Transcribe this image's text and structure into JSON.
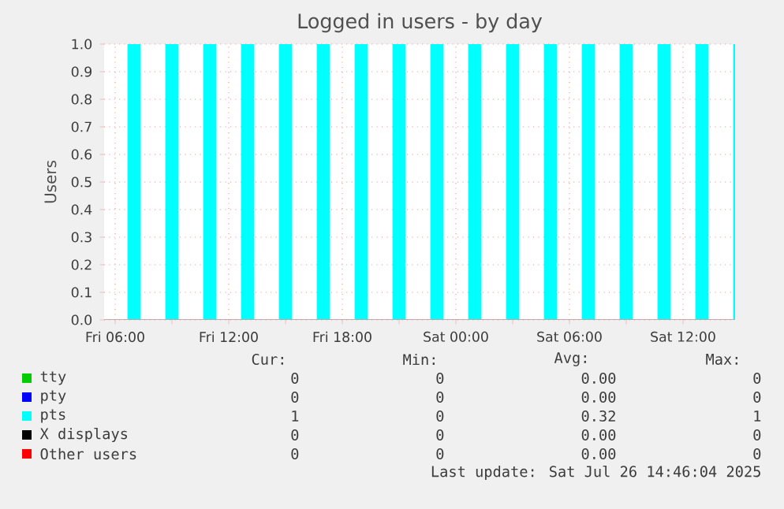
{
  "chart_data": {
    "type": "area",
    "title": "Logged in users - by day",
    "ylabel": "Users",
    "xlim": [
      "2025-07-25T05:25",
      "2025-07-26T14:45"
    ],
    "xticks": [
      {
        "value": "2025-07-25T06:00",
        "label": "Fri 06:00"
      },
      {
        "value": "2025-07-25T09:00",
        "label": null
      },
      {
        "value": "2025-07-25T12:00",
        "label": "Fri 12:00"
      },
      {
        "value": "2025-07-25T15:00",
        "label": null
      },
      {
        "value": "2025-07-25T18:00",
        "label": "Fri 18:00"
      },
      {
        "value": "2025-07-25T21:00",
        "label": null
      },
      {
        "value": "2025-07-26T00:00",
        "label": "Sat 00:00"
      },
      {
        "value": "2025-07-26T03:00",
        "label": null
      },
      {
        "value": "2025-07-26T06:00",
        "label": "Sat 06:00"
      },
      {
        "value": "2025-07-26T09:00",
        "label": null
      },
      {
        "value": "2025-07-26T12:00",
        "label": "Sat 12:00"
      }
    ],
    "ylim": [
      0,
      1
    ],
    "yticks": [
      {
        "value": 0,
        "label": "0.0"
      },
      0.1,
      0.2,
      0.3,
      0.4,
      0.5,
      0.6,
      0.7,
      0.8,
      0.9,
      {
        "value": 1,
        "label": "1.0"
      }
    ],
    "grid": true,
    "legend": "bottom",
    "series": [
      {
        "name": "tty",
        "color": "#00cc00"
      },
      {
        "name": "pty",
        "color": "#0000ff"
      },
      {
        "name": "pts",
        "color": "#00ffff",
        "x": [
          "2025-07-25T05:25",
          "2025-07-25T06:40",
          "2025-07-25T06:40",
          "2025-07-25T07:20",
          "2025-07-25T07:20",
          "2025-07-25T08:40",
          "2025-07-25T08:40",
          "2025-07-25T09:20",
          "2025-07-25T09:20",
          "2025-07-25T10:40",
          "2025-07-25T10:40",
          "2025-07-25T11:20",
          "2025-07-25T11:20",
          "2025-07-25T12:40",
          "2025-07-25T12:40",
          "2025-07-25T13:20",
          "2025-07-25T13:20",
          "2025-07-25T14:40",
          "2025-07-25T14:40",
          "2025-07-25T15:20",
          "2025-07-25T15:20",
          "2025-07-25T16:40",
          "2025-07-25T16:40",
          "2025-07-25T17:20",
          "2025-07-25T17:20",
          "2025-07-25T18:40",
          "2025-07-25T18:40",
          "2025-07-25T19:20",
          "2025-07-25T19:20",
          "2025-07-25T20:40",
          "2025-07-25T20:40",
          "2025-07-25T21:20",
          "2025-07-25T21:20",
          "2025-07-25T22:40",
          "2025-07-25T22:40",
          "2025-07-25T23:20",
          "2025-07-25T23:20",
          "2025-07-26T00:40",
          "2025-07-26T00:40",
          "2025-07-26T01:20",
          "2025-07-26T01:20",
          "2025-07-26T02:40",
          "2025-07-26T02:40",
          "2025-07-26T03:20",
          "2025-07-26T03:20",
          "2025-07-26T04:40",
          "2025-07-26T04:40",
          "2025-07-26T05:20",
          "2025-07-26T05:20",
          "2025-07-26T06:40",
          "2025-07-26T06:40",
          "2025-07-26T07:20",
          "2025-07-26T07:20",
          "2025-07-26T08:40",
          "2025-07-26T08:40",
          "2025-07-26T09:20",
          "2025-07-26T09:20",
          "2025-07-26T10:40",
          "2025-07-26T10:40",
          "2025-07-26T11:20",
          "2025-07-26T11:20",
          "2025-07-26T12:40",
          "2025-07-26T12:40",
          "2025-07-26T13:20",
          "2025-07-26T13:20",
          "2025-07-26T14:40",
          "2025-07-26T14:40",
          "2025-07-26T14:45"
        ],
        "values": [
          0,
          0,
          1,
          1,
          0,
          0,
          1,
          1,
          0,
          0,
          1,
          1,
          0,
          0,
          1,
          1,
          0,
          0,
          1,
          1,
          0,
          0,
          1,
          1,
          0,
          0,
          1,
          1,
          0,
          0,
          1,
          1,
          0,
          0,
          1,
          1,
          0,
          0,
          1,
          1,
          0,
          0,
          1,
          1,
          0,
          0,
          1,
          1,
          0,
          0,
          1,
          1,
          0,
          0,
          1,
          1,
          0,
          0,
          1,
          1,
          0,
          0,
          1,
          1,
          0,
          0,
          1,
          1
        ]
      },
      {
        "name": "X displays",
        "color": "#000000"
      },
      {
        "name": "Other users",
        "color": "#ff0000"
      }
    ],
    "annotations": [
      "Cur:",
      "Min:",
      "Avg:",
      "Max:",
      "0",
      "0",
      "0.00",
      "0",
      "0",
      "0",
      "0.00",
      "0",
      "1",
      "0",
      "0.32",
      "1",
      "0",
      "0",
      "0.00",
      "0",
      "0",
      "0",
      "0.00",
      "0",
      "Last update: Sat Jul 26 14:46:04 2025"
    ]
  }
}
